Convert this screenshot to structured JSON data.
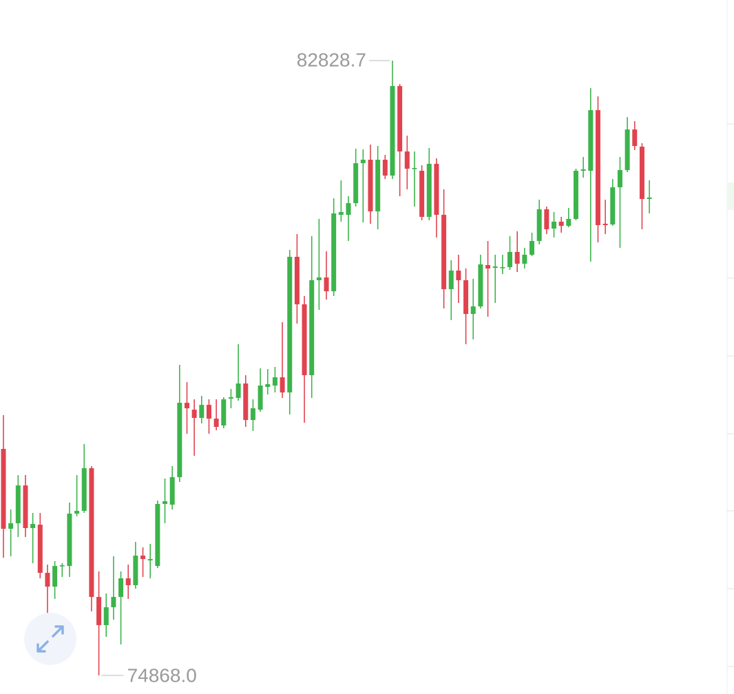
{
  "chart_data": {
    "type": "candlestick",
    "up_color": "#3cb44b",
    "down_color": "#e0434f",
    "open": [
      77801,
      76767,
      76838,
      77328,
      76776,
      76820,
      76196,
      76018,
      76285,
      76285,
      76963,
      76999,
      77551,
      75884,
      75519,
      75751,
      75884,
      76125,
      76036,
      76419,
      76357,
      76285,
      77088,
      77079,
      77435,
      78398,
      78309,
      78202,
      78371,
      78193,
      78104,
      78452,
      78461,
      78648,
      78175,
      78309,
      78603,
      78621,
      78728,
      78532,
      80288,
      79673,
      78755,
      79985,
      80021,
      79842,
      80832,
      80832,
      80983,
      81500,
      81545,
      80876,
      81545,
      81340,
      82499,
      81652,
      81429,
      81402,
      80805,
      81492,
      80832,
      79869,
      80110,
      79985,
      79548,
      79646,
      80181,
      80145,
      80145,
      80154,
      80351,
      80199,
      80315,
      80493,
      80903,
      80654,
      80743,
      80689,
      80778,
      81402,
      81402,
      82187,
      80716,
      80707,
      81188,
      81411,
      81937,
      81714,
      81037
    ],
    "high": [
      78238,
      77016,
      77462,
      77462,
      76972,
      76972,
      76303,
      76348,
      76321,
      77106,
      77462,
      77863,
      77578,
      76214,
      75929,
      76410,
      76214,
      76303,
      76597,
      76526,
      76571,
      77132,
      77418,
      77578,
      78889,
      78666,
      78443,
      78487,
      78443,
      78443,
      78470,
      78577,
      79156,
      78755,
      78443,
      78844,
      78835,
      78862,
      79441,
      80377,
      80582,
      79780,
      80556,
      80778,
      80359,
      81046,
      81278,
      81073,
      81688,
      81679,
      81741,
      81723,
      81607,
      82828.7,
      82526,
      81857,
      81652,
      81474,
      81697,
      81563,
      81162,
      80244,
      80315,
      80137,
      80003,
      80315,
      80493,
      80315,
      80315,
      80556,
      80618,
      80404,
      80600,
      81028,
      80939,
      80868,
      80805,
      80921,
      81429,
      81581,
      82472,
      82365,
      81028,
      81295,
      81581,
      82098,
      82044,
      81759,
      81278
    ],
    "low": [
      76392,
      76410,
      76660,
      76660,
      76321,
      76125,
      75635,
      75858,
      76143,
      76143,
      76927,
      76972,
      75697,
      74868,
      75367,
      75590,
      75269,
      75858,
      75991,
      76143,
      76125,
      76259,
      76838,
      77016,
      77373,
      77997,
      77712,
      78131,
      77997,
      78042,
      78068,
      78327,
      78425,
      78086,
      78033,
      78282,
      78505,
      78532,
      78461,
      78247,
      79423,
      78140,
      78461,
      79602,
      79735,
      79780,
      80743,
      80493,
      80939,
      80734,
      80716,
      80645,
      81295,
      81295,
      81073,
      81162,
      80939,
      80761,
      80761,
      80538,
      79620,
      79468,
      79691,
      79156,
      79218,
      79620,
      79513,
      79691,
      80065,
      80119,
      80092,
      80137,
      80297,
      80449,
      80582,
      80538,
      80600,
      80671,
      80761,
      81313,
      80226,
      80475,
      80582,
      80689,
      80404,
      81385,
      81670,
      80645,
      80850
    ],
    "close": [
      76767,
      76838,
      77328,
      76776,
      76829,
      76196,
      76018,
      76285,
      76294,
      76963,
      76999,
      77551,
      75884,
      75519,
      75751,
      75884,
      76125,
      76036,
      76419,
      76375,
      76375,
      77088,
      77123,
      77435,
      78398,
      78327,
      78202,
      78371,
      78193,
      78086,
      78443,
      78470,
      78648,
      78175,
      78327,
      78621,
      78639,
      78728,
      78532,
      80288,
      79673,
      78755,
      79985,
      80021,
      79842,
      80850,
      80868,
      80983,
      81500,
      81545,
      80876,
      81545,
      81340,
      82499,
      81652,
      81429,
      81438,
      80805,
      81492,
      80832,
      79869,
      80110,
      79985,
      79548,
      79646,
      80190,
      80137,
      80163,
      80154,
      80351,
      80199,
      80315,
      80493,
      80903,
      80645,
      80743,
      80689,
      80778,
      81402,
      81420,
      82187,
      80698,
      80698,
      81188,
      81411,
      81937,
      81723,
      81037,
      81055
    ],
    "annotations": [
      {
        "value": 82828.7,
        "label": "82828.7"
      },
      {
        "value": 74868,
        "label": "74868.0"
      }
    ]
  }
}
